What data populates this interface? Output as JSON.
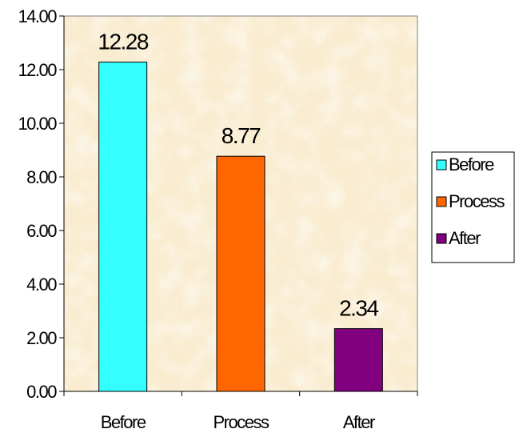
{
  "chart_data": {
    "type": "bar",
    "categories": [
      "Before",
      "Process",
      "After"
    ],
    "values": [
      12.28,
      8.77,
      2.34
    ],
    "data_labels": [
      "12.28",
      "8.77",
      "2.34"
    ],
    "colors": [
      "#33ffff",
      "#ff6600",
      "#800080"
    ],
    "ylim": [
      0,
      14
    ],
    "yticks": [
      "0.00",
      "2.00",
      "4.00",
      "6.00",
      "8.00",
      "10.00",
      "12.00",
      "14.00"
    ],
    "plot_background": "#f9ecd0",
    "grid": false,
    "legend": {
      "placement": "right",
      "entries": [
        "Before",
        "Process",
        "After"
      ]
    }
  }
}
